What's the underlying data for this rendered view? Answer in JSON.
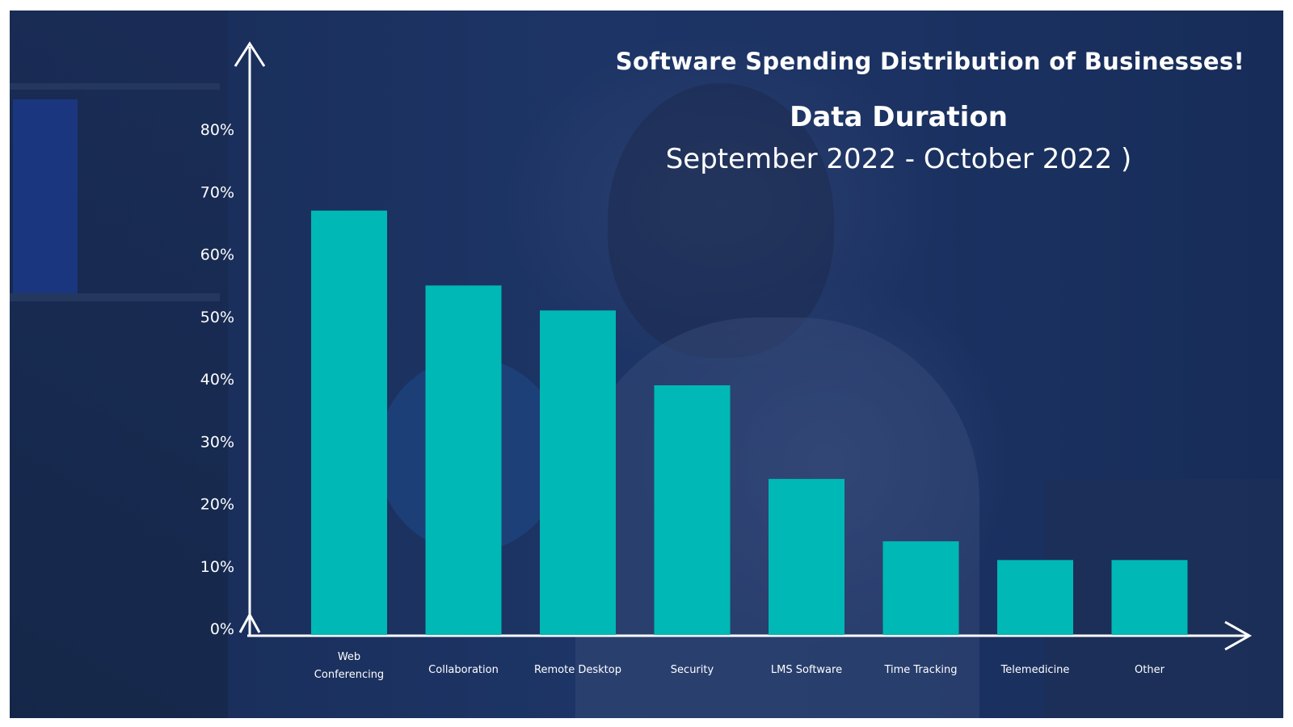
{
  "title": "Software Spending Distribution of Businesses!",
  "subtitle_line1": "Data Duration",
  "subtitle_line2": "September 2022 - October 2022 )",
  "colors": {
    "bar": "#00b8b5",
    "axis": "#ffffff",
    "background": "#1b3262",
    "text": "#ffffff"
  },
  "chart_data": {
    "type": "bar",
    "title": "Software Spending Distribution of Businesses!",
    "categories": [
      [
        "Web",
        "Conferencing"
      ],
      [
        "Collaboration"
      ],
      [
        "Remote Desktop"
      ],
      [
        "Security"
      ],
      [
        "LMS Software"
      ],
      [
        "Time Tracking"
      ],
      [
        "Telemedicine"
      ],
      [
        "Other"
      ]
    ],
    "values": [
      68,
      56,
      52,
      40,
      25,
      15,
      12,
      12
    ],
    "yticks": [
      "0%",
      "10%",
      "20%",
      "30%",
      "40%",
      "50%",
      "60%",
      "70%",
      "80%"
    ],
    "ylim": [
      0,
      80
    ],
    "grid": false
  }
}
